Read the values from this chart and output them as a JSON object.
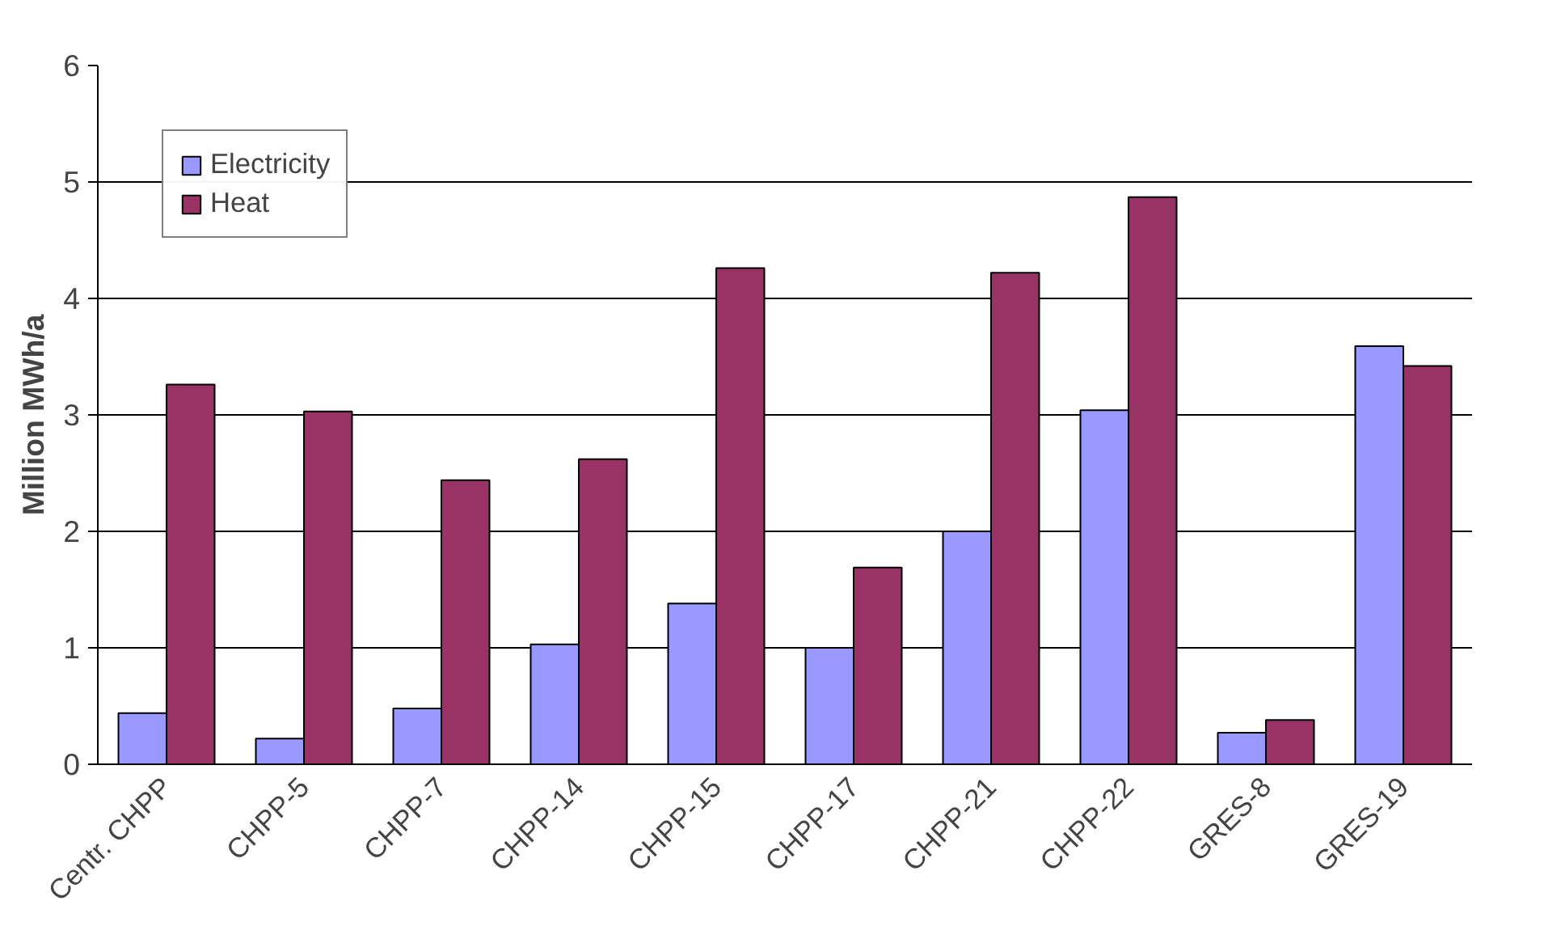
{
  "chart_data": {
    "type": "bar",
    "ylabel": "Million MWh/a",
    "categories": [
      "Centr. CHPP",
      "CHPP-5",
      "CHPP-7",
      "CHPP-14",
      "CHPP-15",
      "CHPP-17",
      "CHPP-21",
      "CHPP-22",
      "GRES-8",
      "GRES-19"
    ],
    "series": [
      {
        "name": "Electricity",
        "color": "#9999ff",
        "values": [
          0.44,
          0.22,
          0.48,
          1.03,
          1.38,
          1.0,
          2.0,
          3.04,
          0.27,
          3.59
        ]
      },
      {
        "name": "Heat",
        "color": "#993366",
        "values": [
          3.26,
          3.03,
          2.44,
          2.62,
          4.26,
          1.69,
          4.22,
          4.87,
          0.38,
          3.42
        ]
      }
    ],
    "ylim": [
      0,
      6
    ],
    "yticks": [
      0,
      1,
      2,
      3,
      4,
      5,
      6
    ],
    "grid": "y",
    "legend": "top left"
  }
}
